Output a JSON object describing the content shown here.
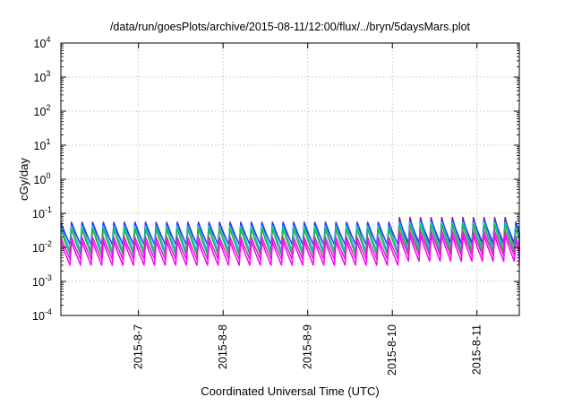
{
  "chart_data": {
    "type": "line",
    "title": "/data/run/goesPlots/archive/2015-08-11/12:00/flux/../bryn/5daysMars.plot",
    "xlabel": "Coordinated Universal Time (UTC)",
    "ylabel": "cGy/day",
    "yscale": "log",
    "ylim": [
      0.0001,
      10000
    ],
    "xlim": [
      "2015-08-06 02:00",
      "2015-08-11 12:00"
    ],
    "grid": true,
    "x_ticks": [
      {
        "value": "2015-08-07",
        "label": "2015-8-7"
      },
      {
        "value": "2015-08-08",
        "label": "2015-8-8"
      },
      {
        "value": "2015-08-09",
        "label": "2015-8-9"
      },
      {
        "value": "2015-08-10",
        "label": "2015-8-10"
      },
      {
        "value": "2015-08-11",
        "label": "2015-8-11"
      }
    ],
    "y_ticks": [
      {
        "exp": "-4"
      },
      {
        "exp": "-3"
      },
      {
        "exp": "-2"
      },
      {
        "exp": "-1"
      },
      {
        "exp": "0"
      },
      {
        "exp": "1"
      },
      {
        "exp": "2"
      },
      {
        "exp": "3"
      },
      {
        "exp": "4"
      }
    ],
    "y_tick_base": "10",
    "sawtooth_period_hours": 3,
    "series": [
      {
        "color": "#dd0000",
        "peak": 0.05,
        "trough": 0.0075,
        "bump_factor": 1.5
      },
      {
        "color": "#7a1fd6",
        "peak": 0.045,
        "trough": 0.0065,
        "bump_factor": 1.4
      },
      {
        "color": "#1a40ff",
        "peak": 0.055,
        "trough": 0.012,
        "bump_factor": 1.2
      },
      {
        "color": "#22c8d8",
        "peak": 0.042,
        "trough": 0.008,
        "bump_factor": 1.3
      },
      {
        "color": "#1bbf4a",
        "peak": 0.035,
        "trough": 0.006,
        "bump_factor": 1.3
      },
      {
        "color": "#e020c8",
        "peak": 0.02,
        "trough": 0.0045,
        "bump_factor": 1.5
      },
      {
        "color": "#ff00ff",
        "peak": 0.015,
        "trough": 0.003,
        "bump_factor": 1.5
      }
    ]
  }
}
